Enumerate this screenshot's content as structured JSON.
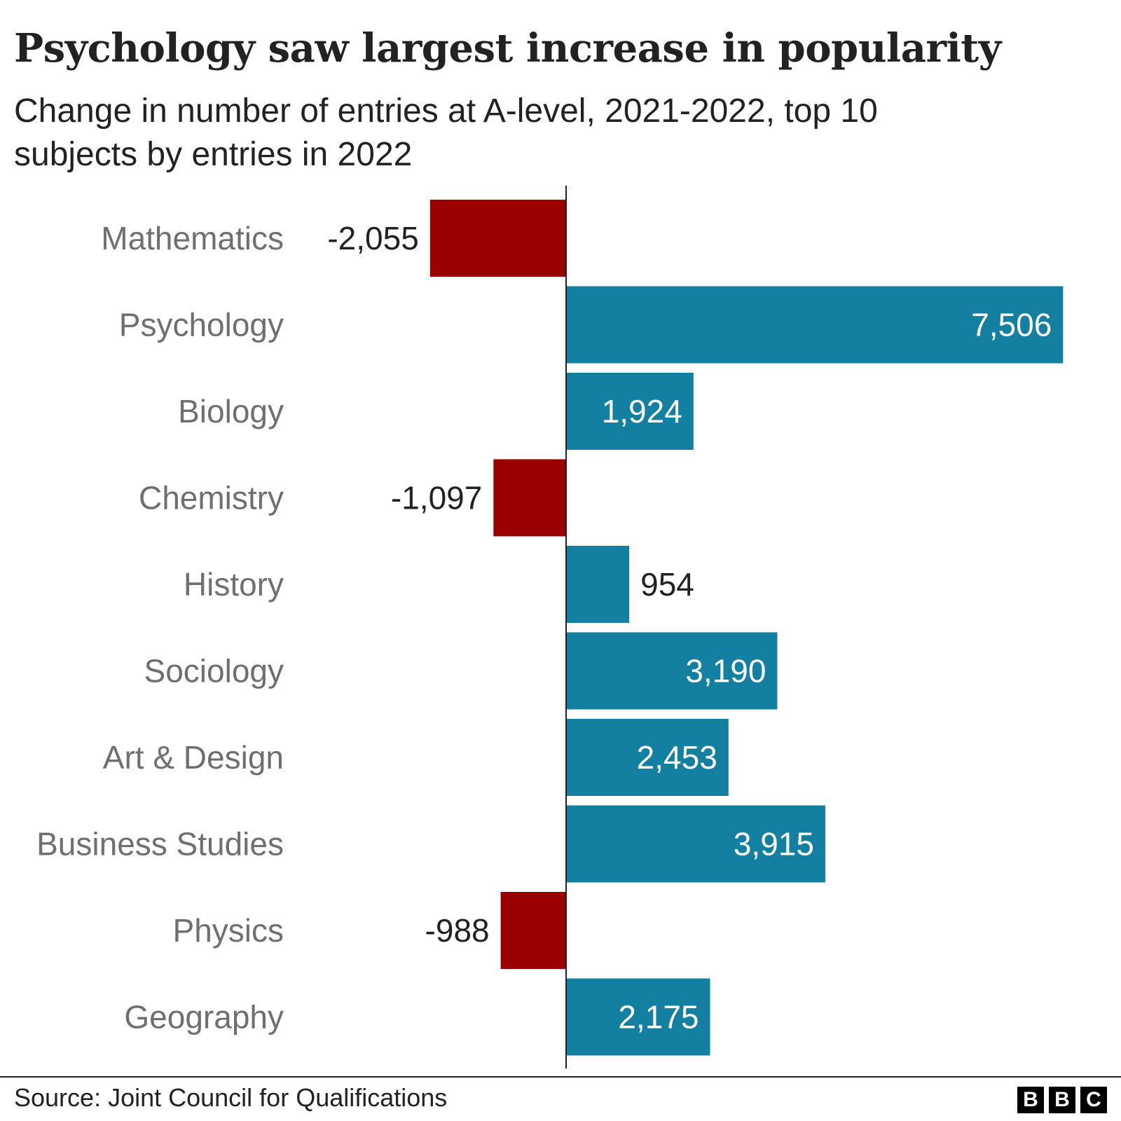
{
  "title": "Psychology saw largest increase in popularity",
  "subtitle": "Change in number of entries at A-level, 2021-2022, top 10 subjects by entries in 2022",
  "source": "Source: Joint Council for Qualifications",
  "logo": [
    "B",
    "B",
    "C"
  ],
  "colors": {
    "positive": "#1380A1",
    "negative": "#990000",
    "label_gray": "#6f6f6f",
    "text": "#222222"
  },
  "chart_data": {
    "type": "bar",
    "orientation": "horizontal",
    "categories": [
      "Mathematics",
      "Psychology",
      "Biology",
      "Chemistry",
      "History",
      "Sociology",
      "Art & Design",
      "Business Studies",
      "Physics",
      "Geography"
    ],
    "values": [
      -2055,
      7506,
      1924,
      -1097,
      954,
      3190,
      2453,
      3915,
      -988,
      2175
    ],
    "value_labels": [
      "-2,055",
      "7,506",
      "1,924",
      "-1,097",
      "954",
      "3,190",
      "2,453",
      "3,915",
      "-988",
      "2,175"
    ],
    "grid": false,
    "legend": "none"
  }
}
